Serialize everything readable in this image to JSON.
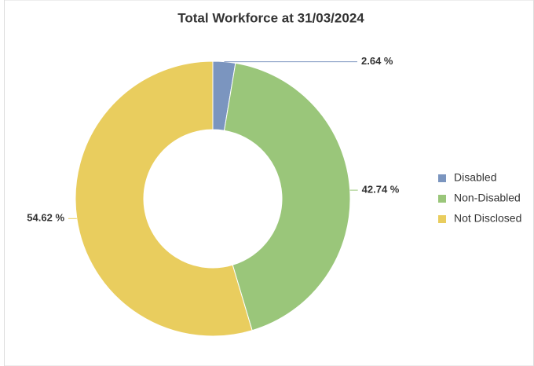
{
  "chart_data": {
    "type": "donut",
    "title": "Total Workforce at 31/03/2024",
    "categories": [
      "Disabled",
      "Non-Disabled",
      "Not Disclosed"
    ],
    "values": [
      2.64,
      42.74,
      54.62
    ],
    "value_labels": [
      "2.64 %",
      "42.74 %",
      "54.62 %"
    ],
    "colors": [
      "#7b95bf",
      "#9ac67a",
      "#e9cd5e"
    ],
    "legend": "right"
  }
}
